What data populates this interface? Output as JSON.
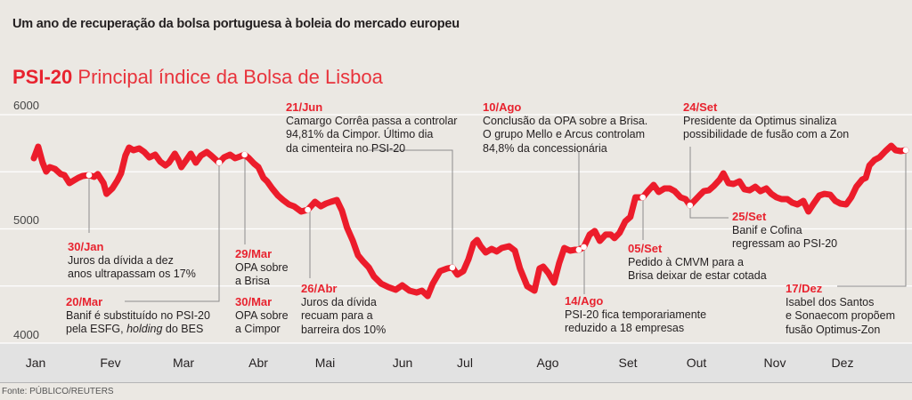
{
  "title": "Um ano de recuperação da bolsa portuguesa à boleia do mercado europeu",
  "subtitle": {
    "bold": "PSI-20",
    "light": "Principal índice da Bolsa de Lisboa"
  },
  "source": "Fonte: PÚBLICO/REUTERS",
  "colors": {
    "line": "#ec1c2b",
    "date": "#e8232f",
    "grid": "#ffffff",
    "leader": "#8c8c8c",
    "background": "#ebe8e3",
    "axis_band": "#e2e2e2"
  },
  "chart_data": {
    "type": "line",
    "title": "PSI-20 Principal índice da Bolsa de Lisboa",
    "xlabel": "",
    "ylabel": "",
    "ylim": [
      4000,
      6000
    ],
    "yticks": [
      4000,
      4500,
      5000,
      5500,
      6000
    ],
    "ytick_labels": [
      "4000",
      "",
      "5000",
      "",
      "6000"
    ],
    "xlim": [
      0,
      12
    ],
    "x_ticks": [
      "Jan",
      "Fev",
      "Mar",
      "Abr",
      "Mai",
      "Jun",
      "Jul",
      "Ago",
      "Set",
      "Out",
      "Nov",
      "Dez"
    ],
    "grid": true,
    "legend": "none",
    "series": [
      {
        "name": "PSI-20",
        "points": [
          [
            0.0,
            5619
          ],
          [
            0.06,
            5720
          ],
          [
            0.12,
            5580
          ],
          [
            0.17,
            5502
          ],
          [
            0.22,
            5541
          ],
          [
            0.29,
            5525
          ],
          [
            0.37,
            5479
          ],
          [
            0.42,
            5471
          ],
          [
            0.49,
            5401
          ],
          [
            0.55,
            5424
          ],
          [
            0.61,
            5447
          ],
          [
            0.67,
            5463
          ],
          [
            0.76,
            5471
          ],
          [
            0.83,
            5455
          ],
          [
            0.88,
            5479
          ],
          [
            0.96,
            5401
          ],
          [
            1.0,
            5307
          ],
          [
            1.08,
            5354
          ],
          [
            1.15,
            5424
          ],
          [
            1.2,
            5486
          ],
          [
            1.26,
            5642
          ],
          [
            1.31,
            5712
          ],
          [
            1.37,
            5689
          ],
          [
            1.45,
            5704
          ],
          [
            1.52,
            5673
          ],
          [
            1.59,
            5626
          ],
          [
            1.67,
            5650
          ],
          [
            1.74,
            5588
          ],
          [
            1.81,
            5556
          ],
          [
            1.86,
            5580
          ],
          [
            1.94,
            5658
          ],
          [
            1.99,
            5603
          ],
          [
            2.03,
            5541
          ],
          [
            2.1,
            5603
          ],
          [
            2.16,
            5658
          ],
          [
            2.23,
            5580
          ],
          [
            2.3,
            5642
          ],
          [
            2.38,
            5673
          ],
          [
            2.44,
            5642
          ],
          [
            2.55,
            5580
          ],
          [
            2.62,
            5627
          ],
          [
            2.7,
            5650
          ],
          [
            2.77,
            5619
          ],
          [
            2.84,
            5634
          ],
          [
            2.9,
            5650
          ],
          [
            2.96,
            5619
          ],
          [
            3.03,
            5572
          ],
          [
            3.09,
            5541
          ],
          [
            3.16,
            5447
          ],
          [
            3.21,
            5416
          ],
          [
            3.28,
            5354
          ],
          [
            3.36,
            5292
          ],
          [
            3.43,
            5253
          ],
          [
            3.51,
            5214
          ],
          [
            3.58,
            5198
          ],
          [
            3.68,
            5152
          ],
          [
            3.77,
            5167
          ],
          [
            3.87,
            5237
          ],
          [
            3.95,
            5198
          ],
          [
            4.02,
            5222
          ],
          [
            4.09,
            5237
          ],
          [
            4.17,
            5253
          ],
          [
            4.24,
            5160
          ],
          [
            4.31,
            5012
          ],
          [
            4.39,
            4895
          ],
          [
            4.46,
            4770
          ],
          [
            4.53,
            4716
          ],
          [
            4.61,
            4662
          ],
          [
            4.68,
            4584
          ],
          [
            4.78,
            4521
          ],
          [
            4.88,
            4490
          ],
          [
            4.98,
            4467
          ],
          [
            5.07,
            4506
          ],
          [
            5.17,
            4459
          ],
          [
            5.27,
            4443
          ],
          [
            5.34,
            4459
          ],
          [
            5.42,
            4412
          ],
          [
            5.49,
            4521
          ],
          [
            5.59,
            4630
          ],
          [
            5.69,
            4654
          ],
          [
            5.76,
            4662
          ],
          [
            5.83,
            4599
          ],
          [
            5.91,
            4630
          ],
          [
            5.98,
            4732
          ],
          [
            6.05,
            4872
          ],
          [
            6.1,
            4903
          ],
          [
            6.15,
            4848
          ],
          [
            6.22,
            4794
          ],
          [
            6.3,
            4825
          ],
          [
            6.37,
            4802
          ],
          [
            6.44,
            4833
          ],
          [
            6.54,
            4848
          ],
          [
            6.62,
            4809
          ],
          [
            6.69,
            4654
          ],
          [
            6.79,
            4498
          ],
          [
            6.89,
            4459
          ],
          [
            6.96,
            4654
          ],
          [
            7.01,
            4669
          ],
          [
            7.08,
            4615
          ],
          [
            7.16,
            4529
          ],
          [
            7.23,
            4700
          ],
          [
            7.3,
            4833
          ],
          [
            7.38,
            4809
          ],
          [
            7.45,
            4817
          ],
          [
            7.5,
            4817
          ],
          [
            7.57,
            4841
          ],
          [
            7.65,
            4950
          ],
          [
            7.72,
            4981
          ],
          [
            7.79,
            4895
          ],
          [
            7.87,
            4950
          ],
          [
            7.94,
            4950
          ],
          [
            7.99,
            4919
          ],
          [
            8.06,
            4965
          ],
          [
            8.14,
            5066
          ],
          [
            8.21,
            5105
          ],
          [
            8.28,
            5276
          ],
          [
            8.38,
            5276
          ],
          [
            8.46,
            5338
          ],
          [
            8.53,
            5385
          ],
          [
            8.6,
            5323
          ],
          [
            8.68,
            5354
          ],
          [
            8.75,
            5354
          ],
          [
            8.82,
            5330
          ],
          [
            8.9,
            5276
          ],
          [
            8.97,
            5261
          ],
          [
            9.03,
            5206
          ],
          [
            9.09,
            5245
          ],
          [
            9.17,
            5299
          ],
          [
            9.22,
            5330
          ],
          [
            9.29,
            5338
          ],
          [
            9.36,
            5377
          ],
          [
            9.44,
            5432
          ],
          [
            9.49,
            5486
          ],
          [
            9.56,
            5401
          ],
          [
            9.63,
            5393
          ],
          [
            9.71,
            5416
          ],
          [
            9.78,
            5346
          ],
          [
            9.85,
            5338
          ],
          [
            9.93,
            5369
          ],
          [
            10.0,
            5330
          ],
          [
            10.08,
            5354
          ],
          [
            10.15,
            5307
          ],
          [
            10.22,
            5276
          ],
          [
            10.29,
            5261
          ],
          [
            10.37,
            5261
          ],
          [
            10.44,
            5229
          ],
          [
            10.51,
            5214
          ],
          [
            10.59,
            5245
          ],
          [
            10.66,
            5152
          ],
          [
            10.74,
            5229
          ],
          [
            10.81,
            5292
          ],
          [
            10.88,
            5307
          ],
          [
            10.96,
            5299
          ],
          [
            11.03,
            5245
          ],
          [
            11.1,
            5222
          ],
          [
            11.18,
            5214
          ],
          [
            11.25,
            5276
          ],
          [
            11.32,
            5369
          ],
          [
            11.4,
            5432
          ],
          [
            11.45,
            5447
          ],
          [
            11.5,
            5556
          ],
          [
            11.57,
            5603
          ],
          [
            11.64,
            5627
          ],
          [
            11.72,
            5681
          ],
          [
            11.8,
            5728
          ],
          [
            11.86,
            5689
          ],
          [
            11.93,
            5681
          ],
          [
            12.0,
            5689
          ]
        ]
      }
    ],
    "markers": [
      {
        "label": "30/Jan",
        "x": 0.76,
        "value": 5471
      },
      {
        "label": "20/Mar",
        "x": 2.55,
        "value": 5580
      },
      {
        "label": "29/Mar",
        "x": 2.9,
        "value": 5650
      },
      {
        "label": "30/Mar",
        "x": 3.77,
        "value": 5167
      },
      {
        "label": "21/Jun",
        "x": 5.76,
        "value": 4662
      },
      {
        "label": "10/Ago",
        "x": 7.5,
        "value": 4817
      },
      {
        "label": "14/Ago",
        "x": 7.57,
        "value": 4841
      },
      {
        "label": "05/Set",
        "x": 8.38,
        "value": 5276
      },
      {
        "label": "24/Set",
        "x": 9.03,
        "value": 5206
      },
      {
        "label": "17/Dez",
        "x": 12.0,
        "value": 5689
      }
    ],
    "annotations": [
      {
        "date": "30/Jan",
        "lines": [
          "Juros da dívida a dez",
          "anos ultrapassam os 17%"
        ]
      },
      {
        "date": "20/Mar",
        "lines": [
          "Banif é substituído no PSI-20",
          "pela ESFG, holding do BES"
        ]
      },
      {
        "date": "29/Mar",
        "lines": [
          "OPA sobre",
          "a Brisa"
        ]
      },
      {
        "date": "30/Mar",
        "lines": [
          "OPA sobre",
          "a Cimpor"
        ]
      },
      {
        "date": "26/Abr",
        "lines": [
          "Juros da dívida",
          "recuam para a",
          "barreira dos 10%"
        ]
      },
      {
        "date": "21/Jun",
        "lines": [
          "Camargo Corrêa passa a controlar",
          "94,81% da Cimpor. Último dia",
          "da cimenteira no PSI-20"
        ]
      },
      {
        "date": "10/Ago",
        "lines": [
          "Conclusão da OPA sobre a Brisa.",
          "O grupo Mello e Arcus controlam",
          "84,8% da concessionária"
        ]
      },
      {
        "date": "14/Ago",
        "lines": [
          "PSI-20 fica temporariamente",
          "reduzido a 18 empresas"
        ]
      },
      {
        "date": "05/Set",
        "lines": [
          "Pedido à CMVM para a",
          "Brisa deixar de estar cotada"
        ]
      },
      {
        "date": "24/Set",
        "lines": [
          "Presidente da Optimus sinaliza",
          "possibilidade de fusão com a Zon"
        ]
      },
      {
        "date": "25/Set",
        "lines": [
          "Banif e Cofina",
          "regressam ao PSI-20"
        ]
      },
      {
        "date": "17/Dez",
        "lines": [
          "Isabel dos Santos",
          "e Sonaecom propõem",
          "fusão Optimus-Zon"
        ]
      }
    ]
  }
}
